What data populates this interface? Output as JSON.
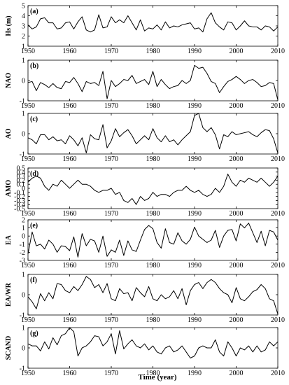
{
  "figure": {
    "xlabel": "Time (year)"
  },
  "chart_data": [
    {
      "type": "line",
      "panel": "(a)",
      "ylabel": "Hs (m)",
      "xlim": [
        1950,
        2010
      ],
      "ylim": [
        1,
        5
      ],
      "xticks": [
        1950,
        1960,
        1970,
        1980,
        1990,
        2000,
        2010
      ],
      "yticks": [
        1,
        2,
        3,
        4,
        5
      ],
      "series": [
        {
          "x_start": 1950,
          "values": [
            3.1,
            2.7,
            2.9,
            3.7,
            3.8,
            3.3,
            3.3,
            2.7,
            2.8,
            3.3,
            3.4,
            2.7,
            3.4,
            3.9,
            2.6,
            2.4,
            2.6,
            4.1,
            2.8,
            2.9,
            3.9,
            3.3,
            3.6,
            3.3,
            4.0,
            3.3,
            2.6,
            3.6,
            2.5,
            2.8,
            2.7,
            3.1,
            2.6,
            3.4,
            2.8,
            3.0,
            2.9,
            3.1,
            3.2,
            3.3,
            2.7,
            2.8,
            2.4,
            3.7,
            4.3,
            3.3,
            2.9,
            2.6,
            3.4,
            3.3,
            2.6,
            3.0,
            3.5,
            3.0,
            2.9,
            2.9,
            2.6,
            3.0,
            2.9,
            2.5,
            2.9
          ]
        }
      ]
    },
    {
      "type": "line",
      "panel": "(b)",
      "ylabel": "NAO",
      "xlim": [
        1950,
        2010
      ],
      "ylim": [
        -1,
        1
      ],
      "xticks": [
        1950,
        1960,
        1970,
        1980,
        1990,
        2000,
        2010
      ],
      "yticks": [
        -1,
        0,
        1
      ],
      "series": [
        {
          "x_start": 1950,
          "values": [
            -0.1,
            -0.05,
            -0.5,
            -0.1,
            -0.2,
            -0.35,
            -0.15,
            -0.35,
            -0.4,
            -0.05,
            -0.1,
            0.15,
            -0.15,
            -0.55,
            -0.05,
            -0.15,
            -0.1,
            -0.25,
            0.45,
            -0.9,
            0.0,
            -0.3,
            -0.15,
            0.05,
            0.0,
            0.25,
            -0.15,
            -0.05,
            0.05,
            -0.2,
            0.45,
            -0.3,
            0.05,
            -0.2,
            -0.4,
            -0.3,
            -0.25,
            0.0,
            -0.15,
            0.0,
            0.75,
            0.6,
            0.65,
            0.35,
            -0.05,
            -0.15,
            -0.6,
            -0.3,
            -0.05,
            0.05,
            0.2,
            0.05,
            -0.15,
            0.0,
            0.05,
            -0.1,
            -0.3,
            -0.25,
            -0.1,
            -0.15,
            -0.95
          ]
        }
      ]
    },
    {
      "type": "line",
      "panel": "(c)",
      "ylabel": "AO",
      "xlim": [
        1950,
        2010
      ],
      "ylim": [
        -1,
        1
      ],
      "xticks": [
        1950,
        1960,
        1970,
        1980,
        1990,
        2000,
        2010
      ],
      "yticks": [
        -1,
        0,
        1
      ],
      "series": [
        {
          "x_start": 1950,
          "values": [
            -0.2,
            -0.3,
            -0.5,
            -0.05,
            -0.05,
            -0.3,
            -0.15,
            -0.35,
            -0.3,
            -0.5,
            -0.1,
            -0.3,
            -0.6,
            -0.2,
            -0.95,
            -0.05,
            -0.25,
            -0.3,
            0.45,
            -0.7,
            -0.35,
            0.25,
            -0.15,
            0.05,
            0.2,
            -0.1,
            -0.5,
            -0.3,
            -0.1,
            -0.3,
            0.25,
            -0.2,
            -0.4,
            -0.1,
            -0.4,
            -0.3,
            -0.55,
            -0.3,
            -0.1,
            0.1,
            0.9,
            1.0,
            0.3,
            0.1,
            0.3,
            -0.05,
            -0.75,
            -0.05,
            -0.15,
            0.1,
            -0.05,
            0.0,
            0.05,
            0.1,
            -0.05,
            -0.15,
            0.05,
            0.2,
            0.15,
            -0.25,
            -0.95
          ]
        }
      ]
    },
    {
      "type": "line",
      "panel": "(d)",
      "ylabel": "AMO",
      "xlim": [
        1950,
        2010
      ],
      "ylim": [
        -0.5,
        0.5
      ],
      "xticks": [
        1950,
        1960,
        1970,
        1980,
        1990,
        2000,
        2010
      ],
      "yticks": [
        -0.5,
        -0.4,
        -0.3,
        -0.2,
        -0.1,
        0,
        0.1,
        0.2,
        0.3,
        0.4,
        0.5
      ],
      "series": [
        {
          "x_start": 1950,
          "values": [
            0.15,
            0.25,
            0.3,
            0.25,
            0.05,
            -0.05,
            0.1,
            0.05,
            0.2,
            0.1,
            0.0,
            0.1,
            0.2,
            0.1,
            0.1,
            0.05,
            -0.05,
            -0.1,
            -0.05,
            -0.05,
            0.0,
            -0.15,
            -0.1,
            -0.3,
            -0.35,
            -0.25,
            -0.4,
            -0.2,
            -0.3,
            -0.25,
            -0.1,
            -0.2,
            -0.15,
            -0.15,
            -0.2,
            -0.1,
            -0.05,
            -0.05,
            0.05,
            -0.05,
            -0.1,
            -0.05,
            -0.15,
            -0.2,
            -0.15,
            0.0,
            -0.1,
            0.05,
            0.35,
            0.15,
            0.05,
            0.2,
            0.15,
            0.25,
            0.2,
            0.15,
            0.25,
            0.15,
            0.05,
            0.15,
            0.3
          ]
        }
      ]
    },
    {
      "type": "line",
      "panel": "(e)",
      "ylabel": "EA",
      "xlim": [
        1950,
        2010
      ],
      "ylim": [
        -3,
        2
      ],
      "xticks": [
        1950,
        1960,
        1970,
        1980,
        1990,
        2000,
        2010
      ],
      "yticks": [
        -3,
        -2,
        -1,
        0,
        1,
        2
      ],
      "series": [
        {
          "x_start": 1950,
          "values": [
            -2.2,
            0.5,
            -1.2,
            -1.0,
            -1.6,
            -0.5,
            -1.0,
            -2.0,
            -1.2,
            -1.3,
            -1.8,
            -0.1,
            -2.6,
            0.3,
            -1.2,
            -0.4,
            -0.6,
            -2.0,
            0.0,
            -2.5,
            -1.7,
            -2.0,
            -0.5,
            -2.4,
            -0.6,
            -1.7,
            -1.9,
            -0.5,
            0.8,
            1.3,
            0.9,
            -0.8,
            -1.5,
            0.9,
            -0.8,
            -1.0,
            0.4,
            -0.6,
            -1.0,
            -0.4,
            1.1,
            0.0,
            -0.4,
            -0.8,
            -0.5,
            0.7,
            -1.4,
            0.0,
            0.7,
            0.8,
            -0.6,
            1.5,
            1.0,
            1.6,
            0.4,
            -0.8,
            0.6,
            -1.2,
            0.7,
            0.5,
            -0.5
          ]
        }
      ]
    },
    {
      "type": "line",
      "panel": "(f)",
      "ylabel": "EA/WR",
      "xlim": [
        1950,
        2010
      ],
      "ylim": [
        -1,
        1
      ],
      "xticks": [
        1950,
        1960,
        1970,
        1980,
        1990,
        2000,
        2010
      ],
      "yticks": [
        -1,
        0,
        1
      ],
      "series": [
        {
          "x_start": 1950,
          "values": [
            -0.1,
            -0.35,
            -0.7,
            0.05,
            -0.3,
            0.1,
            -0.2,
            0.55,
            0.5,
            0.2,
            0.1,
            0.4,
            0.2,
            0.5,
            0.9,
            0.75,
            0.35,
            0.5,
            0.1,
            0.55,
            -0.2,
            -0.3,
            0.3,
            0.05,
            0.1,
            -0.3,
            0.35,
            0.1,
            -0.1,
            0.4,
            -0.2,
            -0.3,
            0.0,
            -0.2,
            -0.1,
            0.2,
            -0.2,
            0.3,
            -0.5,
            0.2,
            0.5,
            0.6,
            0.3,
            0.6,
            0.75,
            0.6,
            0.3,
            0.1,
            0.0,
            -0.4,
            0.35,
            -0.2,
            -0.3,
            -0.1,
            0.15,
            0.25,
            0.5,
            0.3,
            -0.2,
            -0.3,
            -0.95
          ]
        }
      ]
    },
    {
      "type": "line",
      "panel": "(g)",
      "ylabel": "SCAND",
      "xlim": [
        1950,
        2010
      ],
      "ylim": [
        -1,
        1
      ],
      "xticks": [
        1950,
        1960,
        1970,
        1980,
        1990,
        2000,
        2010
      ],
      "yticks": [
        -1,
        0,
        1
      ],
      "series": [
        {
          "x_start": 1950,
          "values": [
            0.2,
            0.1,
            0.1,
            -0.15,
            0.3,
            -0.05,
            0.5,
            0.15,
            0.6,
            0.7,
            1.0,
            0.8,
            -0.4,
            0.0,
            0.1,
            0.3,
            0.6,
            0.55,
            0.1,
            0.3,
            0.7,
            -0.3,
            0.85,
            -0.05,
            0.2,
            0.4,
            0.1,
            0.0,
            0.2,
            -0.1,
            0.1,
            -0.2,
            -0.3,
            0.0,
            0.1,
            -0.2,
            -0.1,
            0.1,
            -0.2,
            -0.5,
            -0.4,
            0.0,
            0.1,
            0.0,
            0.0,
            0.4,
            -0.2,
            -0.4,
            0.3,
            0.0,
            -0.4,
            0.0,
            -0.1,
            0.1,
            -0.2,
            0.1,
            -0.2,
            -0.1,
            0.3,
            0.1,
            0.3
          ]
        }
      ]
    }
  ]
}
